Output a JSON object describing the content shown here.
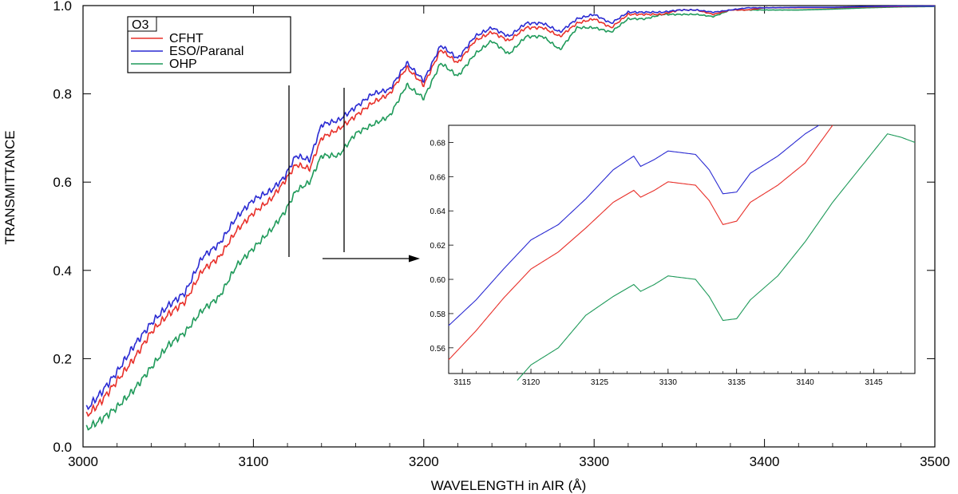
{
  "chart_data": [
    {
      "type": "line",
      "xlabel": "WAVELENGTH in AIR (Å)",
      "ylabel": "TRANSMITTANCE",
      "xlim": [
        3000,
        3500
      ],
      "ylim": [
        0.0,
        1.0
      ],
      "x_ticks": [
        "3000",
        "3100",
        "3200",
        "3300",
        "3400",
        "3500"
      ],
      "y_ticks": [
        "0.0",
        "0.2",
        "0.4",
        "0.6",
        "0.8",
        "1.0"
      ],
      "legend": {
        "title": "O3",
        "placement": "top-left"
      },
      "series": [
        {
          "name": "CFHT",
          "color": "#e8302a",
          "x": [
            3002,
            3010,
            3020,
            3030,
            3040,
            3050,
            3060,
            3070,
            3080,
            3090,
            3100,
            3110,
            3118,
            3125,
            3133,
            3140,
            3150,
            3160,
            3170,
            3180,
            3190,
            3200,
            3210,
            3220,
            3230,
            3240,
            3250,
            3260,
            3270,
            3280,
            3290,
            3300,
            3310,
            3320,
            3330,
            3340,
            3350,
            3360,
            3370,
            3380,
            3390,
            3400,
            3420,
            3440,
            3460,
            3480,
            3500
          ],
          "y": [
            0.07,
            0.1,
            0.15,
            0.2,
            0.26,
            0.3,
            0.33,
            0.4,
            0.43,
            0.49,
            0.53,
            0.56,
            0.6,
            0.64,
            0.63,
            0.7,
            0.72,
            0.75,
            0.78,
            0.8,
            0.86,
            0.82,
            0.9,
            0.87,
            0.92,
            0.94,
            0.92,
            0.95,
            0.95,
            0.93,
            0.96,
            0.97,
            0.95,
            0.98,
            0.98,
            0.98,
            0.99,
            0.99,
            0.98,
            0.99,
            0.99,
            0.995,
            0.995,
            0.995,
            0.997,
            0.998,
            0.999
          ]
        },
        {
          "name": "ESO/Paranal",
          "color": "#2a2ad2",
          "x": [
            3002,
            3010,
            3020,
            3030,
            3040,
            3050,
            3060,
            3070,
            3080,
            3090,
            3100,
            3110,
            3118,
            3125,
            3133,
            3140,
            3150,
            3160,
            3170,
            3180,
            3190,
            3200,
            3210,
            3220,
            3230,
            3240,
            3250,
            3260,
            3270,
            3280,
            3290,
            3300,
            3310,
            3320,
            3330,
            3340,
            3350,
            3360,
            3370,
            3380,
            3390,
            3400,
            3420,
            3440,
            3460,
            3480,
            3500
          ],
          "y": [
            0.085,
            0.12,
            0.17,
            0.23,
            0.28,
            0.32,
            0.35,
            0.43,
            0.46,
            0.52,
            0.56,
            0.58,
            0.61,
            0.66,
            0.65,
            0.73,
            0.74,
            0.77,
            0.8,
            0.81,
            0.87,
            0.83,
            0.91,
            0.88,
            0.93,
            0.95,
            0.93,
            0.96,
            0.96,
            0.94,
            0.97,
            0.98,
            0.96,
            0.985,
            0.985,
            0.985,
            0.99,
            0.99,
            0.985,
            0.99,
            0.995,
            0.995,
            0.996,
            0.996,
            0.998,
            0.999,
            0.999
          ]
        },
        {
          "name": "OHP",
          "color": "#1f9a5a",
          "x": [
            3002,
            3010,
            3020,
            3030,
            3040,
            3050,
            3060,
            3070,
            3080,
            3090,
            3100,
            3110,
            3118,
            3125,
            3133,
            3140,
            3150,
            3160,
            3170,
            3180,
            3190,
            3200,
            3210,
            3220,
            3230,
            3240,
            3250,
            3260,
            3270,
            3280,
            3290,
            3300,
            3310,
            3320,
            3330,
            3340,
            3350,
            3360,
            3370,
            3380,
            3390,
            3400,
            3420,
            3440,
            3460,
            3480,
            3500
          ],
          "y": [
            0.04,
            0.06,
            0.09,
            0.13,
            0.18,
            0.23,
            0.26,
            0.31,
            0.34,
            0.41,
            0.45,
            0.49,
            0.53,
            0.58,
            0.6,
            0.66,
            0.66,
            0.71,
            0.73,
            0.75,
            0.82,
            0.79,
            0.87,
            0.84,
            0.89,
            0.92,
            0.89,
            0.93,
            0.93,
            0.9,
            0.95,
            0.95,
            0.94,
            0.97,
            0.97,
            0.98,
            0.98,
            0.98,
            0.975,
            0.99,
            0.99,
            0.99,
            0.99,
            0.992,
            0.995,
            0.997,
            0.998
          ]
        }
      ],
      "annotations": [
        {
          "type": "vertical-marker",
          "x": 3118
        },
        {
          "type": "vertical-marker",
          "x": 3150
        },
        {
          "type": "arrow",
          "direction": "right",
          "label": ""
        }
      ]
    },
    {
      "type": "line",
      "role": "inset",
      "xlabel": "",
      "ylabel": "",
      "xlim": [
        3114,
        3148
      ],
      "ylim": [
        0.545,
        0.69
      ],
      "x_ticks": [
        "3115",
        "3120",
        "3125",
        "3130",
        "3135",
        "3140",
        "3145"
      ],
      "y_ticks": [
        "0.56",
        "0.58",
        "0.60",
        "0.62",
        "0.64",
        "0.66",
        "0.68"
      ],
      "series": [
        {
          "name": "ESO/Paranal",
          "color": "#2a2ad2",
          "x": [
            3114,
            3116,
            3118,
            3120,
            3122,
            3124,
            3126,
            3127.5,
            3128,
            3129,
            3130,
            3132,
            3133,
            3134,
            3135,
            3136,
            3138,
            3140,
            3141
          ],
          "y": [
            0.573,
            0.588,
            0.606,
            0.623,
            0.632,
            0.647,
            0.664,
            0.672,
            0.666,
            0.67,
            0.675,
            0.673,
            0.664,
            0.65,
            0.651,
            0.662,
            0.672,
            0.685,
            0.69
          ]
        },
        {
          "name": "CFHT",
          "color": "#e8302a",
          "x": [
            3114,
            3116,
            3118,
            3120,
            3122,
            3124,
            3126,
            3127.5,
            3128,
            3129,
            3130,
            3132,
            3133,
            3134,
            3135,
            3136,
            3138,
            3140,
            3142
          ],
          "y": [
            0.553,
            0.57,
            0.589,
            0.606,
            0.616,
            0.63,
            0.645,
            0.652,
            0.648,
            0.652,
            0.657,
            0.655,
            0.646,
            0.632,
            0.634,
            0.645,
            0.655,
            0.668,
            0.69
          ]
        },
        {
          "name": "OHP",
          "color": "#1f9a5a",
          "x": [
            3119,
            3120,
            3122,
            3124,
            3126,
            3127.5,
            3128,
            3129,
            3130,
            3132,
            3133,
            3134,
            3135,
            3136,
            3138,
            3140,
            3142,
            3144,
            3146,
            3147,
            3148
          ],
          "y": [
            0.541,
            0.55,
            0.56,
            0.579,
            0.59,
            0.597,
            0.593,
            0.597,
            0.602,
            0.6,
            0.59,
            0.576,
            0.577,
            0.588,
            0.602,
            0.622,
            0.645,
            0.665,
            0.685,
            0.683,
            0.68
          ]
        }
      ]
    }
  ]
}
